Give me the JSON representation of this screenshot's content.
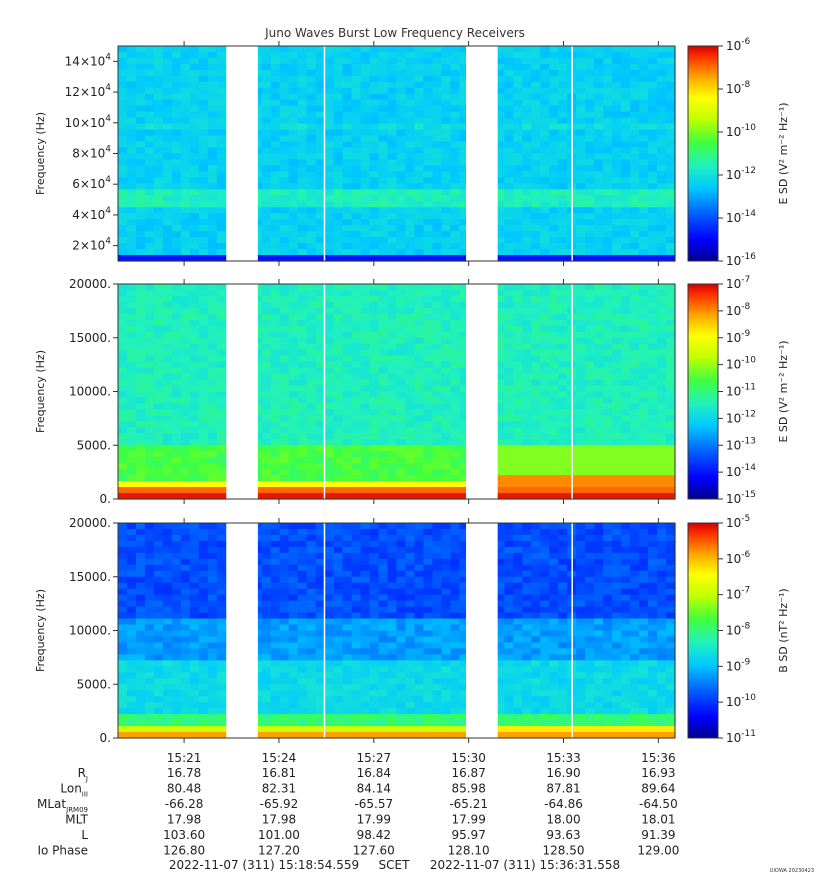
{
  "title": "Juno Waves Burst Low Frequency Receivers",
  "stamp": "UIOWA 20230423",
  "colors": {
    "background": "#ffffff",
    "gap": "#ffffff",
    "axis": "#333333",
    "cmap": [
      "#00008f",
      "#0000ff",
      "#0060ff",
      "#00c8ff",
      "#20f0c0",
      "#40ff40",
      "#c0ff00",
      "#ffff00",
      "#ffa000",
      "#ff3000",
      "#d00000"
    ]
  },
  "chart_data": [
    {
      "type": "heatmap",
      "title": "Juno Waves Burst Low Frequency Receivers",
      "ylabel": "Frequency (Hz)",
      "ylim": [
        10000,
        150000
      ],
      "yticks": [
        {
          "v": 20000,
          "m": "2×10",
          "e": "4"
        },
        {
          "v": 40000,
          "m": "4×10",
          "e": "4"
        },
        {
          "v": 60000,
          "m": "6×10",
          "e": "4"
        },
        {
          "v": 80000,
          "m": "8×10",
          "e": "4"
        },
        {
          "v": 100000,
          "m": "10×10",
          "e": "4"
        },
        {
          "v": 120000,
          "m": "12×10",
          "e": "4"
        },
        {
          "v": 140000,
          "m": "14×10",
          "e": "4"
        }
      ],
      "colorbar": {
        "label": "E SD (V² m⁻² Hz⁻¹)",
        "scale": "log",
        "range_exp": [
          -16,
          -6
        ],
        "ticks": [
          {
            "e": "-6"
          },
          {
            "e": "-8"
          },
          {
            "e": "-10"
          },
          {
            "e": "-12"
          },
          {
            "e": "-14"
          },
          {
            "e": "-16"
          }
        ]
      }
    },
    {
      "type": "heatmap",
      "ylabel": "Frequency (Hz)",
      "ylim": [
        0,
        20000
      ],
      "yticks": [
        {
          "v": 0,
          "t": "0."
        },
        {
          "v": 5000,
          "t": "5000."
        },
        {
          "v": 10000,
          "t": "10000."
        },
        {
          "v": 15000,
          "t": "15000."
        },
        {
          "v": 20000,
          "t": "20000."
        }
      ],
      "colorbar": {
        "label": "E SD (V² m⁻² Hz⁻¹)",
        "scale": "log",
        "range_exp": [
          -15,
          -7
        ],
        "ticks": [
          {
            "e": "-7"
          },
          {
            "e": "-8"
          },
          {
            "e": "-9"
          },
          {
            "e": "-10"
          },
          {
            "e": "-11"
          },
          {
            "e": "-12"
          },
          {
            "e": "-13"
          },
          {
            "e": "-14"
          },
          {
            "e": "-15"
          }
        ]
      }
    },
    {
      "type": "heatmap",
      "ylabel": "Frequency (Hz)",
      "ylim": [
        0,
        20000
      ],
      "yticks": [
        {
          "v": 0,
          "t": "0."
        },
        {
          "v": 5000,
          "t": "5000."
        },
        {
          "v": 10000,
          "t": "10000."
        },
        {
          "v": 15000,
          "t": "15000."
        },
        {
          "v": 20000,
          "t": "20000."
        }
      ],
      "colorbar": {
        "label": "B SD (nT² Hz⁻¹)",
        "scale": "log",
        "range_exp": [
          -11,
          -5
        ],
        "ticks": [
          {
            "e": "-5"
          },
          {
            "e": "-6"
          },
          {
            "e": "-7"
          },
          {
            "e": "-8"
          },
          {
            "e": "-9"
          },
          {
            "e": "-10"
          },
          {
            "e": "-11"
          }
        ]
      }
    }
  ],
  "time_axis": {
    "start": "15:18:54.559",
    "end": "15:36:31.558",
    "ticks": [
      "15:21",
      "15:24",
      "15:27",
      "15:30",
      "15:33",
      "15:36"
    ],
    "data_gaps": [
      [
        "15:22:20",
        "15:23:20"
      ],
      [
        "15:29:55",
        "15:30:55"
      ]
    ],
    "dropouts": [
      "15:25:25",
      "15:33:15"
    ]
  },
  "ephemeris": {
    "labels": [
      {
        "main": "R",
        "sub": "J"
      },
      {
        "main": "Lon",
        "sub": "III"
      },
      {
        "main": "MLat",
        "sub": "JRM09"
      },
      {
        "main": "MLT",
        "sub": ""
      },
      {
        "main": "L",
        "sub": ""
      },
      {
        "main": "Io Phase",
        "sub": ""
      }
    ],
    "rows": [
      [
        "16.78",
        "16.81",
        "16.84",
        "16.87",
        "16.90",
        "16.93"
      ],
      [
        "80.48",
        "82.31",
        "84.14",
        "85.98",
        "87.81",
        "89.64"
      ],
      [
        "-66.28",
        "-65.92",
        "-65.57",
        "-65.21",
        "-64.86",
        "-64.50"
      ],
      [
        "17.98",
        "17.98",
        "17.99",
        "17.99",
        "18.00",
        "18.01"
      ],
      [
        "103.60",
        "101.00",
        "98.42",
        "95.97",
        "93.63",
        "91.39"
      ],
      [
        "126.80",
        "127.20",
        "127.60",
        "128.10",
        "128.50",
        "129.00"
      ]
    ]
  },
  "footer": {
    "start": "2022-11-07 (311) 15:18:54.559",
    "mid": "SCET",
    "end": "2022-11-07 (311) 15:36:31.558"
  }
}
